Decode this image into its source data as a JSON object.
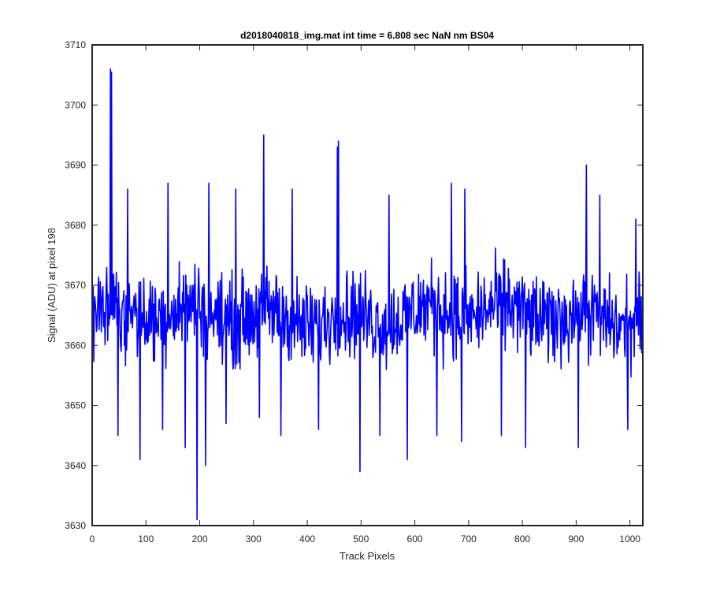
{
  "chart_data": {
    "type": "line",
    "title": "d2018040818_img.mat int time = 6.808 sec  NaN nm BS04",
    "xlabel": "Track Pixels",
    "ylabel": "Signal (ADU) at pixel 198",
    "xlim": [
      0,
      1024
    ],
    "ylim": [
      3630,
      3710
    ],
    "xticks": [
      0,
      100,
      200,
      300,
      400,
      500,
      600,
      700,
      800,
      900,
      1000
    ],
    "yticks": [
      3630,
      3640,
      3650,
      3660,
      3670,
      3680,
      3690,
      3700,
      3710
    ],
    "grid": false,
    "series_color": "#0000ff",
    "series": [
      {
        "count": 1024,
        "mean": 3665,
        "noise_amplitude": 8,
        "peaks": [
          {
            "x": 33,
            "y": 3706
          },
          {
            "x": 35,
            "y": 3705.5
          },
          {
            "x": 65,
            "y": 3686
          },
          {
            "x": 140,
            "y": 3687
          },
          {
            "x": 216,
            "y": 3687
          },
          {
            "x": 266,
            "y": 3686
          },
          {
            "x": 318,
            "y": 3695
          },
          {
            "x": 371,
            "y": 3686
          },
          {
            "x": 455,
            "y": 3693
          },
          {
            "x": 457,
            "y": 3694
          },
          {
            "x": 551,
            "y": 3685
          },
          {
            "x": 667,
            "y": 3687
          },
          {
            "x": 692,
            "y": 3686
          },
          {
            "x": 918,
            "y": 3690
          },
          {
            "x": 943,
            "y": 3685
          },
          {
            "x": 1010,
            "y": 3681
          }
        ],
        "troughs": [
          {
            "x": 47,
            "y": 3645
          },
          {
            "x": 88,
            "y": 3641
          },
          {
            "x": 130,
            "y": 3646
          },
          {
            "x": 172,
            "y": 3643
          },
          {
            "x": 194,
            "y": 3631
          },
          {
            "x": 210,
            "y": 3640
          },
          {
            "x": 248,
            "y": 3647
          },
          {
            "x": 310,
            "y": 3648
          },
          {
            "x": 350,
            "y": 3645
          },
          {
            "x": 420,
            "y": 3646
          },
          {
            "x": 497,
            "y": 3639
          },
          {
            "x": 534,
            "y": 3645
          },
          {
            "x": 585,
            "y": 3641
          },
          {
            "x": 640,
            "y": 3645
          },
          {
            "x": 686,
            "y": 3644
          },
          {
            "x": 760,
            "y": 3645
          },
          {
            "x": 805,
            "y": 3643
          },
          {
            "x": 903,
            "y": 3643
          },
          {
            "x": 995,
            "y": 3646
          }
        ]
      }
    ]
  }
}
